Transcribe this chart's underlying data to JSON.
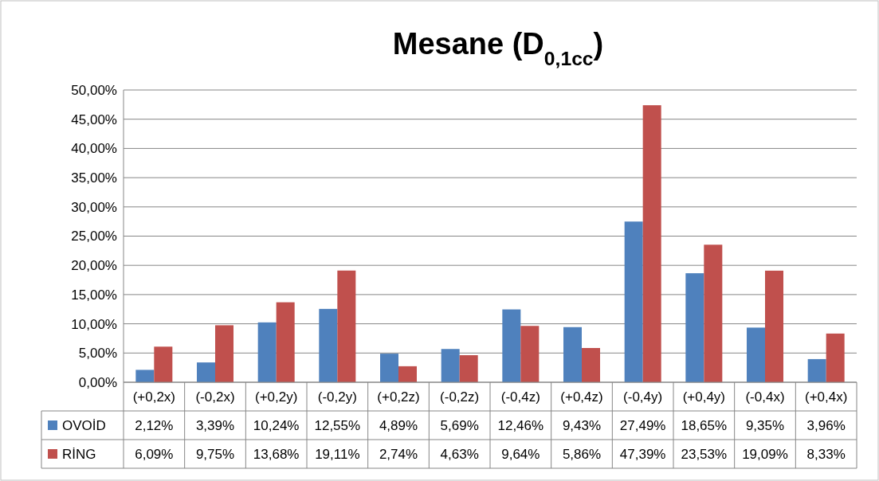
{
  "chart_data": {
    "type": "bar",
    "title": "Mesane (D$_{0,1cc}$)",
    "categories": [
      "(+0,2x)",
      "(-0,2x)",
      "(+0,2y)",
      "(-0,2y)",
      "(+0,2z)",
      "(-0,2z)",
      "(-0,4z)",
      "(+0,4z)",
      "(-0,4y)",
      "(+0,4y)",
      "(-0,4x)",
      "(+0,4x)"
    ],
    "series": [
      {
        "name": "OVOİD",
        "color": "#4f81bd",
        "values": [
          2.12,
          3.39,
          10.24,
          12.55,
          4.89,
          5.69,
          12.46,
          9.43,
          27.49,
          18.65,
          9.35,
          3.96
        ],
        "value_labels": [
          "2,12%",
          "3,39%",
          "10,24%",
          "12,55%",
          "4,89%",
          "5,69%",
          "12,46%",
          "9,43%",
          "27,49%",
          "18,65%",
          "9,35%",
          "3,96%"
        ]
      },
      {
        "name": "RİNG",
        "color": "#c0504d",
        "values": [
          6.09,
          9.75,
          13.68,
          19.11,
          2.74,
          4.63,
          9.64,
          5.86,
          47.39,
          23.53,
          19.09,
          8.33
        ],
        "value_labels": [
          "6,09%",
          "9,75%",
          "13,68%",
          "19,11%",
          "2,74%",
          "4,63%",
          "9,64%",
          "5,86%",
          "47,39%",
          "23,53%",
          "19,09%",
          "8,33%"
        ]
      }
    ],
    "ylim": [
      0,
      50
    ],
    "yticks": [
      {
        "value": 0,
        "label": "0,00%"
      },
      {
        "value": 5,
        "label": "5,00%"
      },
      {
        "value": 10,
        "label": "10,00%"
      },
      {
        "value": 15,
        "label": "15,00%"
      },
      {
        "value": 20,
        "label": "20,00%"
      },
      {
        "value": 25,
        "label": "25,00%"
      },
      {
        "value": 30,
        "label": "30,00%"
      },
      {
        "value": 35,
        "label": "35,00%"
      },
      {
        "value": 40,
        "label": "40,00%"
      },
      {
        "value": 45,
        "label": "45,00%"
      },
      {
        "value": 50,
        "label": "50,00%"
      }
    ],
    "grid": "y",
    "legend": "bottom"
  }
}
